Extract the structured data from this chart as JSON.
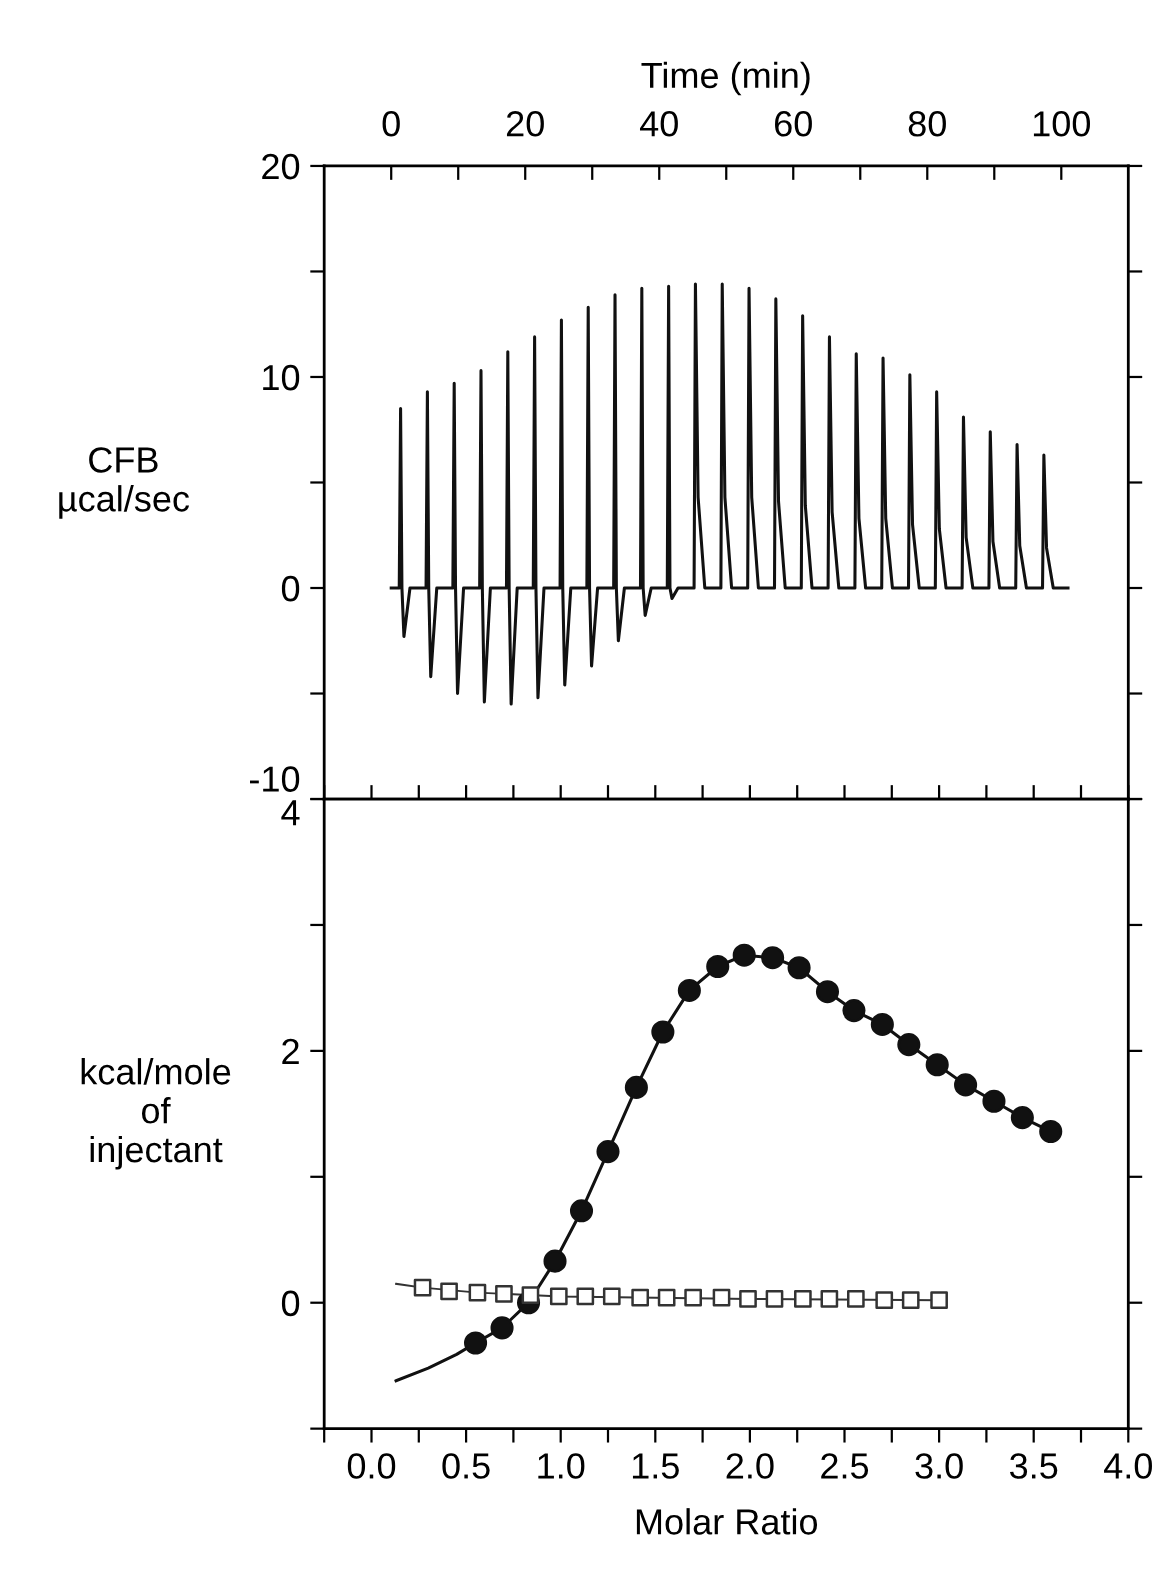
{
  "chart_data": [
    {
      "type": "line",
      "xlabel": "Time (min)",
      "ylabel": "CFB\nµcal/sec",
      "xlim": [
        -10,
        110
      ],
      "xticks": [
        0,
        {
          "value": 10,
          "label": null
        },
        20,
        {
          "value": 30,
          "label": null
        },
        40,
        {
          "value": 50,
          "label": null
        },
        60,
        {
          "value": 70,
          "label": null
        },
        80,
        {
          "value": 90,
          "label": null
        },
        100
      ],
      "ylim": [
        -10,
        20
      ],
      "yticks": [
        -10,
        {
          "value": -5,
          "label": null
        },
        0,
        {
          "value": 5,
          "label": null
        },
        10,
        {
          "value": 15,
          "label": null
        },
        20
      ],
      "grid": false,
      "legend": false,
      "marker": "none",
      "line_style": "solid",
      "series": [
        {
          "color": "#111111",
          "x": [
            0,
            1.2,
            1.4,
            1.6,
            1.9,
            2.8,
            5.2,
            5.4,
            5.6,
            5.9,
            6.8,
            9.2,
            9.4,
            9.6,
            9.9,
            10.8,
            13.2,
            13.4,
            13.6,
            13.9,
            14.8,
            17.2,
            17.4,
            17.6,
            17.9,
            18.8,
            21.2,
            21.4,
            21.6,
            21.9,
            22.8,
            25.2,
            25.4,
            25.6,
            25.9,
            26.8,
            29.2,
            29.4,
            29.6,
            29.9,
            30.8,
            33.2,
            33.4,
            33.6,
            33.9,
            34.8,
            37.2,
            37.4,
            37.6,
            37.9,
            38.8,
            41.2,
            41.4,
            41.6,
            41.9,
            42.8,
            45.2,
            45.4,
            45.8,
            46.8,
            49.2,
            49.4,
            49.8,
            50.8,
            53.2,
            53.4,
            53.8,
            54.8,
            57.2,
            57.4,
            57.8,
            58.8,
            61.2,
            61.4,
            61.8,
            62.8,
            65.2,
            65.4,
            65.8,
            66.8,
            69.2,
            69.4,
            69.8,
            70.8,
            73.2,
            73.4,
            73.8,
            74.8,
            77.2,
            77.4,
            77.8,
            78.8,
            81.2,
            81.4,
            81.8,
            82.8,
            85.2,
            85.4,
            85.8,
            86.8,
            89.2,
            89.4,
            89.8,
            90.8,
            93.2,
            93.4,
            93.8,
            94.8,
            97.2,
            97.4,
            97.8,
            98.8,
            101
          ],
          "values": [
            0,
            0,
            8.5,
            0,
            -2.3,
            0,
            0,
            9.3,
            0,
            -4.2,
            0,
            0,
            9.7,
            0,
            -5.0,
            0,
            0,
            10.3,
            0,
            -5.4,
            0,
            0,
            11.2,
            0,
            -5.5,
            0,
            0,
            11.9,
            0,
            -5.2,
            0,
            0,
            12.7,
            0,
            -4.6,
            0,
            0,
            13.3,
            0,
            -3.7,
            0,
            0,
            13.9,
            0,
            -2.5,
            0,
            0,
            14.2,
            0,
            -1.3,
            0,
            0,
            14.3,
            0,
            -0.5,
            0,
            0,
            14.4,
            4.3,
            0,
            0,
            14.4,
            4.3,
            0,
            0,
            14.2,
            4.3,
            0,
            0,
            13.7,
            4.1,
            0,
            0,
            12.9,
            3.9,
            0,
            0,
            11.9,
            3.6,
            0,
            0,
            11.1,
            3.3,
            0,
            0,
            10.9,
            3.3,
            0,
            0,
            10.1,
            3.0,
            0,
            0,
            9.3,
            2.8,
            0,
            0,
            8.1,
            2.4,
            0,
            0,
            7.4,
            2.2,
            0,
            0,
            6.8,
            2.0,
            0,
            0,
            6.3,
            1.9,
            0,
            0
          ]
        }
      ]
    },
    {
      "type": "scatter",
      "xlabel": "Molar Ratio",
      "ylabel": "kcal/mole\nof\ninjectant",
      "xlim": [
        -0.25,
        4.0
      ],
      "xticks": [
        {
          "value": -0.25,
          "label": null
        },
        {
          "value": 0,
          "label": "0.0"
        },
        {
          "value": 0.25,
          "label": null
        },
        0.5,
        {
          "value": 0.75,
          "label": null
        },
        {
          "value": 1,
          "label": "1.0"
        },
        {
          "value": 1.25,
          "label": null
        },
        1.5,
        {
          "value": 1.75,
          "label": null
        },
        {
          "value": 2,
          "label": "2.0"
        },
        {
          "value": 2.25,
          "label": null
        },
        2.5,
        {
          "value": 2.75,
          "label": null
        },
        {
          "value": 3,
          "label": "3.0"
        },
        {
          "value": 3.25,
          "label": null
        },
        3.5,
        {
          "value": 3.75,
          "label": null
        },
        {
          "value": 4,
          "label": "4.0"
        }
      ],
      "ylim": [
        -1,
        4
      ],
      "yticks": [
        {
          "value": -1,
          "label": null
        },
        0,
        {
          "value": 1,
          "label": null
        },
        2,
        {
          "value": 3,
          "label": null
        },
        4
      ],
      "grid": false,
      "legend": false,
      "series": [
        {
          "type": "line",
          "color": "#111111",
          "marker": "none",
          "line_style": "solid",
          "x": [
            0.13,
            0.3,
            0.45,
            0.55,
            0.69,
            0.83,
            0.97,
            1.11,
            1.25,
            1.4,
            1.54,
            1.68,
            1.83,
            1.97,
            2.12,
            2.26,
            2.41,
            2.55,
            2.7,
            2.84,
            2.99,
            3.14,
            3.29,
            3.44,
            3.59
          ],
          "values": [
            -0.62,
            -0.52,
            -0.41,
            -0.32,
            -0.2,
            0.0,
            0.33,
            0.73,
            1.2,
            1.71,
            2.15,
            2.48,
            2.67,
            2.76,
            2.74,
            2.66,
            2.47,
            2.32,
            2.21,
            2.05,
            1.89,
            1.73,
            1.6,
            1.47,
            1.36
          ]
        },
        {
          "type": "scatter",
          "color": "#111111",
          "marker": "circle",
          "x": [
            0.55,
            0.69,
            0.83,
            0.97,
            1.11,
            1.25,
            1.4,
            1.54,
            1.68,
            1.83,
            1.97,
            2.12,
            2.26,
            2.41,
            2.55,
            2.7,
            2.84,
            2.99,
            3.14,
            3.29,
            3.44,
            3.59
          ],
          "values": [
            -0.32,
            -0.2,
            0.0,
            0.33,
            0.73,
            1.2,
            1.71,
            2.15,
            2.48,
            2.67,
            2.76,
            2.74,
            2.66,
            2.47,
            2.32,
            2.21,
            2.05,
            1.89,
            1.73,
            1.6,
            1.47,
            1.36
          ]
        },
        {
          "type": "line",
          "color": "#333333",
          "marker": "none",
          "line_style": "solid",
          "x": [
            0.13,
            0.27,
            0.56,
            1.0,
            2.0,
            3.0
          ],
          "values": [
            0.15,
            0.12,
            0.08,
            0.05,
            0.03,
            0.02
          ]
        },
        {
          "type": "scatter",
          "color": "#333333",
          "marker": "square",
          "x": [
            0.27,
            0.41,
            0.56,
            0.7,
            0.84,
            0.99,
            1.13,
            1.27,
            1.42,
            1.56,
            1.7,
            1.85,
            1.99,
            2.13,
            2.28,
            2.42,
            2.56,
            2.71,
            2.85,
            3.0
          ],
          "values": [
            0.12,
            0.09,
            0.08,
            0.07,
            0.06,
            0.05,
            0.05,
            0.05,
            0.04,
            0.04,
            0.04,
            0.04,
            0.03,
            0.03,
            0.03,
            0.03,
            0.03,
            0.02,
            0.02,
            0.02
          ]
        }
      ]
    }
  ]
}
